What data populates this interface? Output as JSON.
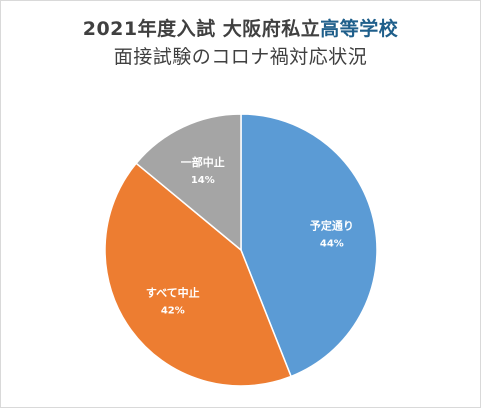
{
  "chart_data": {
    "type": "pie",
    "title_line1_prefix": "2021年度入試 大阪府私立",
    "title_line1_accent": "高等学校",
    "title_line2": "面接試験のコロナ禍対応状況",
    "categories": [
      "予定通り",
      "すべて中止",
      "一部中止"
    ],
    "values": [
      44,
      42,
      14
    ],
    "value_labels": [
      "44%",
      "42%",
      "14%"
    ],
    "colors": [
      "#5b9bd5",
      "#ed7d31",
      "#a5a5a5"
    ],
    "legend": "none"
  }
}
